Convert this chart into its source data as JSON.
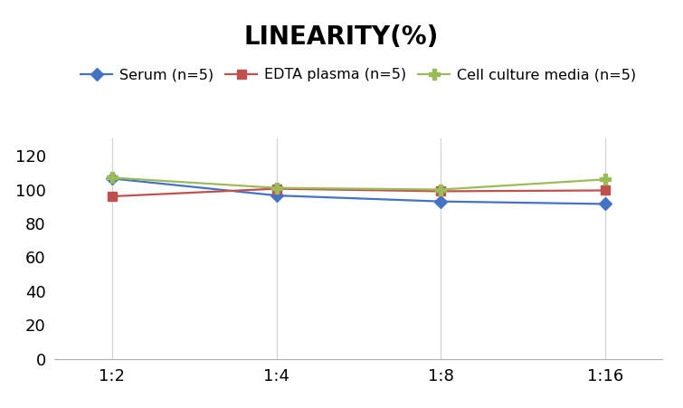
{
  "title": "LINEARITY(%)",
  "x_labels": [
    "1:2",
    "1:4",
    "1:8",
    "1:16"
  ],
  "x_positions": [
    0,
    1,
    2,
    3
  ],
  "series": [
    {
      "label": "Serum (n=5)",
      "color": "#4472C4",
      "marker": "D",
      "markersize": 7,
      "values": [
        106.5,
        96.5,
        93.0,
        91.5
      ]
    },
    {
      "label": "EDTA plasma (n=5)",
      "color": "#C0504D",
      "marker": "s",
      "markersize": 7,
      "values": [
        96.0,
        100.5,
        99.0,
        99.5
      ]
    },
    {
      "label": "Cell culture media (n=5)",
      "color": "#9BBB59",
      "marker": "P",
      "markersize": 8,
      "values": [
        107.0,
        101.0,
        100.0,
        106.0
      ]
    }
  ],
  "ylim": [
    0,
    130
  ],
  "yticks": [
    0,
    20,
    40,
    60,
    80,
    100,
    120
  ],
  "title_fontsize": 20,
  "legend_fontsize": 11.5,
  "tick_fontsize": 13,
  "background_color": "#ffffff",
  "grid_color": "#d3d3d3"
}
